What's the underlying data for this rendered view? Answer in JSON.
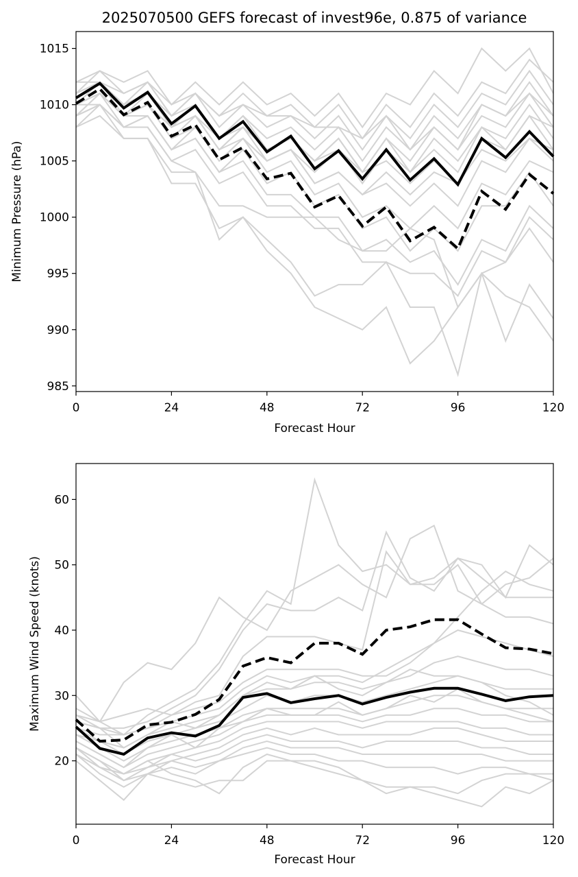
{
  "chart_data": [
    {
      "type": "line",
      "title": "2025070500 GEFS forecast of invest96e, 0.875 of variance",
      "xlabel": "Forecast Hour",
      "ylabel": "Minimum Pressure (hPa)",
      "xlim": [
        0,
        120
      ],
      "ylim": [
        984.5,
        1016.5
      ],
      "xticks": [
        0,
        24,
        48,
        72,
        96,
        120
      ],
      "yticks": [
        985,
        990,
        995,
        1000,
        1005,
        1010,
        1015
      ],
      "grid": false,
      "x": [
        0,
        6,
        12,
        18,
        24,
        30,
        36,
        42,
        48,
        54,
        60,
        66,
        72,
        78,
        84,
        90,
        96,
        102,
        108,
        114,
        120
      ],
      "series": [
        {
          "style": "solid-black",
          "values": [
            1010.6,
            1011.9,
            1009.7,
            1011.1,
            1008.3,
            1009.9,
            1007.0,
            1008.5,
            1005.8,
            1007.2,
            1004.3,
            1005.9,
            1003.4,
            1006.0,
            1003.3,
            1005.2,
            1002.9,
            1007.0,
            1005.3,
            1007.6,
            1005.4
          ]
        },
        {
          "style": "dashed-black",
          "values": [
            1010.1,
            1011.4,
            1009.1,
            1010.2,
            1007.2,
            1008.2,
            1005.1,
            1006.2,
            1003.4,
            1003.9,
            1000.9,
            1001.9,
            999.2,
            1000.9,
            997.9,
            999.1,
            997.2,
            1002.3,
            1000.7,
            1003.8,
            1002.1
          ]
        },
        {
          "style": "member",
          "values": [
            1012,
            1013,
            1012,
            1013,
            1010,
            1012,
            1010,
            1012,
            1010,
            1011,
            1009,
            1011,
            1008,
            1011,
            1010,
            1013,
            1011,
            1015,
            1013,
            1015,
            1011
          ]
        },
        {
          "style": "member",
          "values": [
            1011,
            1013,
            1011,
            1012,
            1009,
            1011,
            1009,
            1011,
            1009,
            1010,
            1008,
            1010,
            1007,
            1010,
            1008,
            1011,
            1009,
            1012,
            1011,
            1014,
            1012
          ]
        },
        {
          "style": "member",
          "values": [
            1011,
            1012,
            1010,
            1012,
            1009,
            1011,
            1008,
            1010,
            1008,
            1009,
            1007,
            1009,
            1006,
            1009,
            1007,
            1010,
            1008,
            1011,
            1010,
            1013,
            1010
          ]
        },
        {
          "style": "member",
          "values": [
            1010,
            1012,
            1009,
            1011,
            1008,
            1010,
            1007,
            1009,
            1007,
            1008,
            1006,
            1008,
            1005,
            1008,
            1006,
            1009,
            1007,
            1010,
            1009,
            1012,
            1009
          ]
        },
        {
          "style": "member",
          "values": [
            1009,
            1011,
            1009,
            1010,
            1007,
            1009,
            1006,
            1008,
            1006,
            1007,
            1005,
            1007,
            1004,
            1007,
            1005,
            1008,
            1006,
            1009,
            1008,
            1011,
            1008
          ]
        },
        {
          "style": "member",
          "values": [
            1008,
            1010,
            1008,
            1009,
            1006,
            1008,
            1005,
            1007,
            1005,
            1006,
            1004,
            1006,
            1003,
            1006,
            1004,
            1007,
            1005,
            1008,
            1007,
            1010,
            1007
          ]
        },
        {
          "style": "member",
          "values": [
            1012,
            1012,
            1011,
            1012,
            1010,
            1011,
            1009,
            1010,
            1009,
            1009,
            1008,
            1008,
            1007,
            1009,
            1006,
            1008,
            1006,
            1010,
            1009,
            1011,
            1009
          ]
        },
        {
          "style": "member",
          "values": [
            1011,
            1012,
            1010,
            1011,
            1009,
            1010,
            1007,
            1009,
            1006,
            1007,
            1005,
            1006,
            1004,
            1005,
            1003,
            1005,
            1003,
            1007,
            1006,
            1009,
            1008
          ]
        },
        {
          "style": "member",
          "values": [
            1010,
            1011,
            1009,
            1010,
            1008,
            1009,
            1006,
            1008,
            1005,
            1006,
            1003,
            1004,
            1002,
            1003,
            1001,
            1003,
            1001,
            1005,
            1004,
            1007,
            1006
          ]
        },
        {
          "style": "member",
          "values": [
            1010,
            1011,
            1009,
            1010,
            1007,
            1008,
            1005,
            1007,
            1004,
            1005,
            1002,
            1003,
            1000,
            1001,
            999,
            1001,
            999,
            1003,
            1002,
            1005,
            1004
          ]
        },
        {
          "style": "member",
          "values": [
            1009,
            1011,
            1008,
            1009,
            1006,
            1007,
            1004,
            1006,
            1003,
            1004,
            1001,
            1002,
            999,
            1000,
            997,
            999,
            997,
            1001,
            1001,
            1004,
            1001
          ]
        },
        {
          "style": "member",
          "values": [
            1010,
            1011,
            1009,
            1009,
            1006,
            1007,
            1004,
            1005,
            1002,
            1002,
            1000,
            1000,
            997,
            998,
            996,
            997,
            994,
            998,
            997,
            1001,
            999
          ]
        },
        {
          "style": "member",
          "values": [
            1009,
            1010,
            1008,
            1008,
            1005,
            1006,
            1003,
            1004,
            1001,
            1001,
            999,
            999,
            996,
            996,
            995,
            995,
            993,
            997,
            996,
            1000,
            998
          ]
        },
        {
          "style": "member",
          "values": [
            1008,
            1009,
            1007,
            1007,
            1004,
            1004,
            1001,
            1001,
            1000,
            1000,
            1000,
            998,
            997,
            997,
            999,
            998,
            992,
            995,
            996,
            999,
            996
          ]
        },
        {
          "style": "member",
          "values": [
            1009,
            1010,
            1007,
            1007,
            1003,
            1003,
            999,
            1000,
            998,
            996,
            993,
            994,
            994,
            996,
            992,
            992,
            986,
            995,
            993,
            992,
            989
          ]
        },
        {
          "style": "member",
          "values": [
            1010,
            1010,
            1008,
            1008,
            1005,
            1004,
            998,
            1000,
            997,
            995,
            992,
            991,
            990,
            992,
            987,
            989,
            992,
            995,
            989,
            994,
            991
          ]
        },
        {
          "style": "member",
          "values": [
            1011,
            1012,
            1010,
            1011,
            1008,
            1009,
            1006,
            1007,
            1005,
            1006,
            1003,
            1004,
            1002,
            1004,
            1002,
            1004,
            1003,
            1006,
            1005,
            1007,
            1005
          ]
        },
        {
          "style": "member",
          "values": [
            1010,
            1012,
            1010,
            1011,
            1008,
            1009,
            1007,
            1008,
            1006,
            1007,
            1005,
            1007,
            1004,
            1007,
            1004,
            1006,
            1004,
            1008,
            1006,
            1009,
            1006
          ]
        }
      ]
    },
    {
      "type": "line",
      "title": "",
      "xlabel": "Forecast Hour",
      "ylabel": "Maximum Wind Speed (knots)",
      "xlim": [
        0,
        120
      ],
      "ylim": [
        10.3,
        65.5
      ],
      "xticks": [
        0,
        24,
        48,
        72,
        96,
        120
      ],
      "yticks": [
        20,
        30,
        40,
        50,
        60
      ],
      "grid": false,
      "x": [
        0,
        6,
        12,
        18,
        24,
        30,
        36,
        42,
        48,
        54,
        60,
        66,
        72,
        78,
        84,
        90,
        96,
        102,
        108,
        114,
        120
      ],
      "series": [
        {
          "style": "solid-black",
          "values": [
            25.2,
            21.9,
            21.0,
            23.5,
            24.3,
            23.8,
            25.4,
            29.7,
            30.3,
            28.9,
            29.5,
            30.0,
            28.7,
            29.7,
            30.5,
            31.1,
            31.1,
            30.2,
            29.2,
            29.8,
            30.0
          ]
        },
        {
          "style": "dashed-black",
          "values": [
            26.3,
            23.0,
            23.2,
            25.5,
            25.9,
            27.1,
            29.4,
            34.5,
            35.8,
            35.0,
            38.0,
            38.0,
            36.3,
            40.0,
            40.5,
            41.6,
            41.6,
            39.4,
            37.3,
            37.1,
            36.4
          ]
        },
        {
          "style": "member",
          "values": [
            26,
            25,
            24,
            27,
            29,
            31,
            35,
            41,
            46,
            44,
            63,
            53,
            49,
            50,
            47,
            48,
            51,
            48,
            45,
            45,
            45
          ]
        },
        {
          "style": "member",
          "values": [
            27,
            25,
            25,
            26,
            28,
            30,
            34,
            40,
            44,
            43,
            43,
            45,
            43,
            55,
            48,
            46,
            51,
            50,
            45,
            53,
            50
          ]
        },
        {
          "style": "member",
          "values": [
            28,
            26,
            32,
            35,
            34,
            38,
            45,
            42,
            40,
            46,
            48,
            50,
            47,
            45,
            54,
            56,
            46,
            44,
            47,
            48,
            51
          ]
        },
        {
          "style": "member",
          "values": [
            25,
            24,
            24,
            25,
            27,
            29,
            30,
            36,
            39,
            39,
            39,
            38,
            37,
            52,
            47,
            47,
            50,
            44,
            42,
            42,
            41
          ]
        },
        {
          "style": "member",
          "values": [
            30,
            26,
            27,
            28,
            27,
            28,
            29,
            32,
            34,
            34,
            34,
            34,
            33,
            33,
            35,
            38,
            42,
            46,
            49,
            47,
            46
          ]
        },
        {
          "style": "member",
          "values": [
            27,
            26,
            24,
            25,
            26,
            27,
            28,
            31,
            33,
            32,
            33,
            33,
            32,
            34,
            36,
            38,
            40,
            39,
            38,
            37,
            36
          ]
        },
        {
          "style": "member",
          "values": [
            26,
            25,
            22,
            24,
            25,
            26,
            27,
            30,
            31,
            31,
            32,
            32,
            31,
            32,
            33,
            35,
            36,
            35,
            34,
            34,
            33
          ]
        },
        {
          "style": "member",
          "values": [
            25,
            23,
            21,
            23,
            24,
            25,
            26,
            28,
            30,
            29,
            30,
            30,
            29,
            30,
            31,
            32,
            33,
            32,
            31,
            31,
            31
          ]
        },
        {
          "style": "member",
          "values": [
            24,
            22,
            20,
            22,
            23,
            24,
            25,
            27,
            28,
            28,
            28,
            28,
            27,
            28,
            29,
            30,
            30,
            29,
            28,
            28,
            28
          ]
        },
        {
          "style": "member",
          "values": [
            23,
            21,
            19,
            21,
            22,
            23,
            24,
            26,
            27,
            27,
            27,
            27,
            26,
            27,
            27,
            28,
            28,
            27,
            27,
            26,
            26
          ]
        },
        {
          "style": "member",
          "values": [
            22,
            20,
            18,
            20,
            21,
            22,
            23,
            25,
            26,
            26,
            26,
            26,
            25,
            26,
            26,
            26,
            26,
            25,
            25,
            24,
            24
          ]
        },
        {
          "style": "member",
          "values": [
            21,
            19,
            18,
            19,
            20,
            21,
            22,
            24,
            25,
            24,
            25,
            24,
            24,
            24,
            24,
            25,
            25,
            24,
            23,
            23,
            23
          ]
        },
        {
          "style": "member",
          "values": [
            22,
            20,
            17,
            19,
            21,
            20,
            21,
            23,
            24,
            23,
            23,
            23,
            22,
            23,
            23,
            23,
            23,
            22,
            22,
            21,
            21
          ]
        },
        {
          "style": "member",
          "values": [
            21,
            19,
            17,
            18,
            20,
            19,
            20,
            22,
            23,
            22,
            22,
            22,
            21,
            21,
            21,
            21,
            21,
            21,
            20,
            20,
            20
          ]
        },
        {
          "style": "member",
          "values": [
            20,
            17,
            14,
            18,
            19,
            18,
            20,
            21,
            22,
            21,
            21,
            20,
            20,
            19,
            19,
            19,
            18,
            19,
            19,
            18,
            18
          ]
        },
        {
          "style": "member",
          "values": [
            21,
            18,
            16,
            18,
            17,
            16,
            17,
            17,
            20,
            20,
            19,
            18,
            17,
            16,
            16,
            16,
            15,
            17,
            18,
            18,
            17
          ]
        },
        {
          "style": "member",
          "values": [
            22,
            19,
            18,
            20,
            18,
            17,
            15,
            19,
            21,
            20,
            20,
            19,
            17,
            15,
            16,
            15,
            14,
            13,
            16,
            15,
            17
          ]
        },
        {
          "style": "member",
          "values": [
            23,
            21,
            19,
            22,
            24,
            22,
            25,
            26,
            28,
            27,
            27,
            29,
            27,
            28,
            30,
            29,
            31,
            29,
            28,
            27,
            26
          ]
        },
        {
          "style": "member",
          "values": [
            24,
            23,
            22,
            24,
            26,
            25,
            27,
            30,
            32,
            31,
            33,
            31,
            30,
            32,
            34,
            33,
            33,
            32,
            30,
            29,
            27
          ]
        }
      ]
    }
  ]
}
